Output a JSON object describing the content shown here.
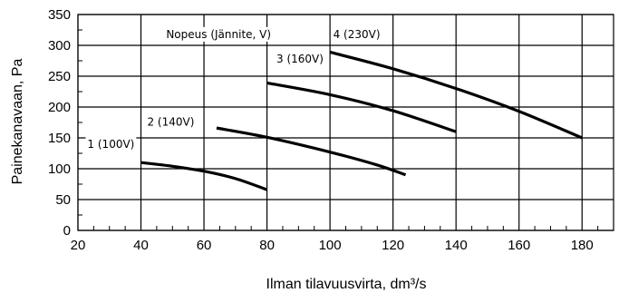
{
  "chart_data": {
    "type": "line",
    "title": "",
    "xlabel": "Ilman tilavuusvirta, dm³/s",
    "ylabel": "Painekanavaan, Pa",
    "xlim": [
      20,
      190
    ],
    "ylim": [
      0,
      350
    ],
    "x_ticks": [
      20,
      40,
      60,
      80,
      100,
      120,
      140,
      160,
      180
    ],
    "y_ticks": [
      0,
      50,
      100,
      150,
      200,
      250,
      300,
      350
    ],
    "grid": true,
    "legend": "none",
    "series": [
      {
        "name": "1 (100V)",
        "x": [
          40,
          50,
          60,
          70,
          80
        ],
        "y": [
          110,
          104,
          96,
          84,
          66
        ]
      },
      {
        "name": "2 (140V)",
        "x": [
          64,
          80,
          100,
          115,
          124
        ],
        "y": [
          166,
          151,
          127,
          106,
          90
        ]
      },
      {
        "name": "3 (160V)",
        "x": [
          80,
          100,
          120,
          140
        ],
        "y": [
          239,
          220,
          194,
          160
        ]
      },
      {
        "name": "4 (230V)",
        "x": [
          100,
          120,
          140,
          160,
          180
        ],
        "y": [
          289,
          262,
          230,
          193,
          150
        ]
      }
    ],
    "annotations": [
      {
        "text": "Nopeus (Jännite, V)",
        "x": 48,
        "y": 312
      },
      {
        "text": "4 (230V)",
        "x": 101,
        "y": 312
      },
      {
        "text": "3 (160V)",
        "x": 83,
        "y": 272
      },
      {
        "text": "2 (140V)",
        "x": 42,
        "y": 170
      },
      {
        "text": "1 (100V)",
        "x": 23,
        "y": 134
      }
    ]
  }
}
